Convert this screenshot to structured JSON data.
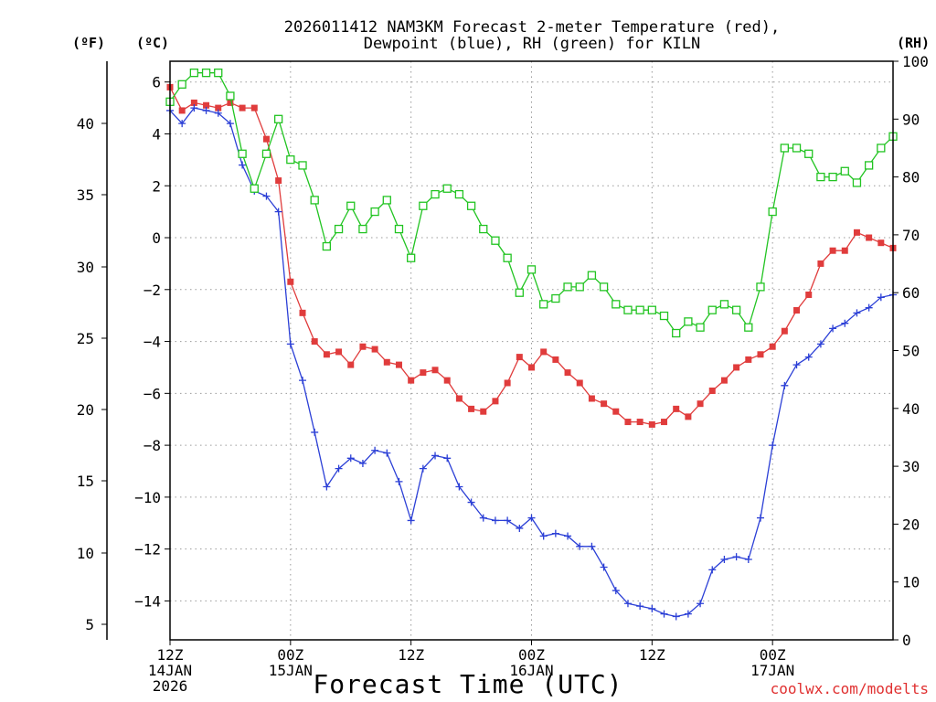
{
  "chart_data": {
    "type": "line",
    "title_lines": [
      "2026011412 NAM3KM Forecast 2-meter Temperature (red),",
      "Dewpoint (blue), RH (green) for KILN"
    ],
    "xlabel": "Forecast Time (UTC)",
    "credit": "coolwx.com/modelts",
    "units": {
      "f": "(ºF)",
      "c": "(ºC)",
      "rh": "(RH)"
    },
    "x_range_hours": [
      0,
      36
    ],
    "x_ticks": [
      {
        "hour": 0,
        "lines": [
          "12Z",
          "14JAN",
          "2026"
        ]
      },
      {
        "hour": 6,
        "lines": [
          "00Z",
          "15JAN"
        ]
      },
      {
        "hour": 12,
        "lines": [
          "12Z"
        ]
      },
      {
        "hour": 18,
        "lines": [
          "00Z",
          "16JAN"
        ]
      },
      {
        "hour": 24,
        "lines": [
          "12Z"
        ]
      },
      {
        "hour": 30,
        "lines": [
          "00Z",
          "17JAN"
        ]
      }
    ],
    "ylim_c": [
      -15.5,
      6.8
    ],
    "yticks_c": [
      "6",
      "4",
      "2",
      "0",
      "−2",
      "−4",
      "−6",
      "−8",
      "−10",
      "−12",
      "−14"
    ],
    "yticks_f": [
      "40",
      "35",
      "30",
      "25",
      "20",
      "15",
      "10",
      "5"
    ],
    "ylim_rh": [
      0,
      100
    ],
    "yticks_rh": [
      "100",
      "90",
      "80",
      "70",
      "60",
      "50",
      "40",
      "30",
      "20",
      "10",
      "0"
    ],
    "series": [
      {
        "name": "2-meter Temperature",
        "unit": "C",
        "color": "#e03c3c",
        "marker": "filled-square",
        "values": [
          5.8,
          4.9,
          5.2,
          5.1,
          5.0,
          5.2,
          5.0,
          5.0,
          3.8,
          2.2,
          -1.7,
          -2.9,
          -4.0,
          -4.5,
          -4.4,
          -4.9,
          -4.2,
          -4.3,
          -4.8,
          -4.9,
          -5.5,
          -5.2,
          -5.1,
          -5.5,
          -6.2,
          -6.6,
          -6.7,
          -6.3,
          -5.6,
          -4.6,
          -5.0,
          -4.4,
          -4.7,
          -5.2,
          -5.6,
          -6.2,
          -6.4,
          -6.7,
          -7.1,
          -7.1,
          -7.2,
          -7.1,
          -6.6,
          -6.9,
          -6.4,
          -5.9,
          -5.5,
          -5.0,
          -4.7,
          -4.5,
          -4.2,
          -3.6,
          -2.8,
          -2.2,
          -1.0,
          -0.5,
          -0.5,
          0.2,
          0.0,
          -0.2,
          -0.4
        ]
      },
      {
        "name": "Dewpoint",
        "unit": "C",
        "color": "#2b3fd6",
        "marker": "plus",
        "values": [
          4.9,
          4.4,
          5.0,
          4.9,
          4.8,
          4.4,
          2.8,
          1.8,
          1.6,
          1.0,
          -4.1,
          -5.5,
          -7.5,
          -9.6,
          -8.9,
          -8.5,
          -8.7,
          -8.2,
          -8.3,
          -9.4,
          -10.9,
          -8.9,
          -8.4,
          -8.5,
          -9.6,
          -10.2,
          -10.8,
          -10.9,
          -10.9,
          -11.2,
          -10.8,
          -11.5,
          -11.4,
          -11.5,
          -11.9,
          -11.9,
          -12.7,
          -13.6,
          -14.1,
          -14.2,
          -14.3,
          -14.5,
          -14.6,
          -14.5,
          -14.1,
          -12.8,
          -12.4,
          -12.3,
          -12.4,
          -10.8,
          -8.0,
          -5.7,
          -4.9,
          -4.6,
          -4.1,
          -3.5,
          -3.3,
          -2.9,
          -2.7,
          -2.3,
          -2.2
        ]
      },
      {
        "name": "RH",
        "unit": "%",
        "color": "#22c422",
        "marker": "open-square",
        "values": [
          93,
          96,
          98,
          98,
          98,
          94,
          84,
          78,
          84,
          90,
          83,
          82,
          76,
          68,
          71,
          75,
          71,
          74,
          76,
          71,
          66,
          75,
          77,
          78,
          77,
          75,
          71,
          69,
          66,
          60,
          64,
          58,
          59,
          61,
          61,
          63,
          61,
          58,
          57,
          57,
          57,
          56,
          53,
          55,
          54,
          57,
          58,
          57,
          54,
          61,
          74,
          85,
          85,
          84,
          80,
          80,
          81,
          79,
          82,
          85,
          87
        ]
      }
    ]
  }
}
